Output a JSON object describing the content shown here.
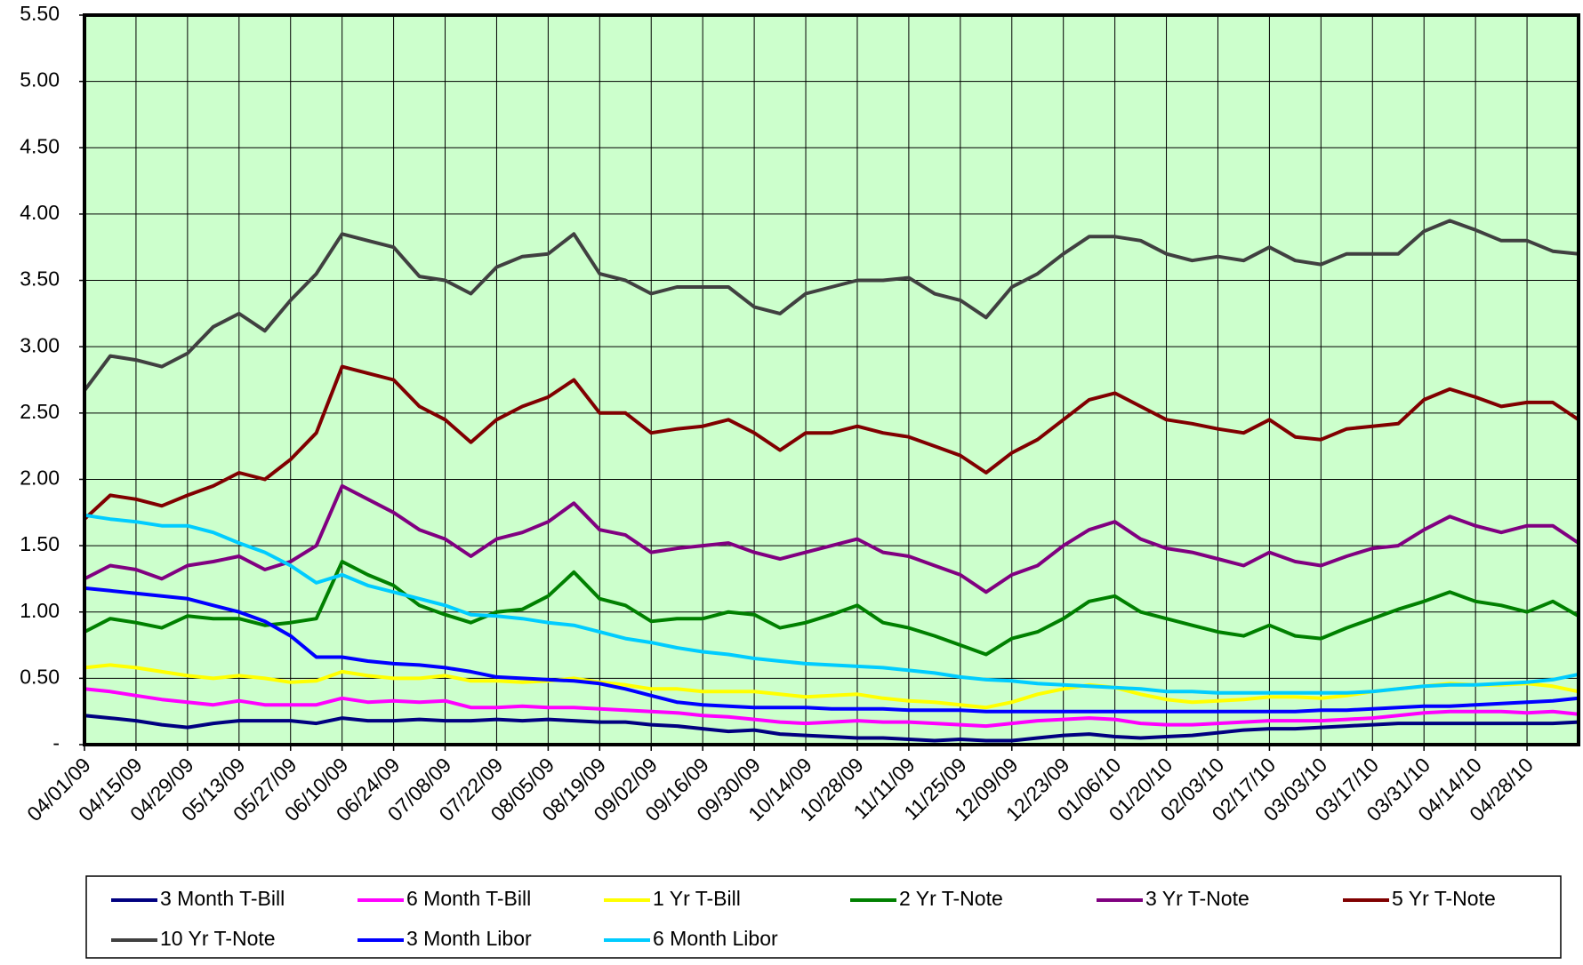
{
  "chart_data": {
    "type": "line",
    "categories": [
      "04/01/09",
      null,
      "04/15/09",
      null,
      "04/29/09",
      null,
      "05/13/09",
      null,
      "05/27/09",
      null,
      "06/10/09",
      null,
      "06/24/09",
      null,
      "07/08/09",
      null,
      "07/22/09",
      null,
      "08/05/09",
      null,
      "08/19/09",
      null,
      "09/02/09",
      null,
      "09/16/09",
      null,
      "09/30/09",
      null,
      "10/14/09",
      null,
      "10/28/09",
      null,
      "11/11/09",
      null,
      "11/25/09",
      null,
      "12/09/09",
      null,
      "12/23/09",
      null,
      "01/06/10",
      null,
      "01/20/10",
      null,
      "02/03/10",
      null,
      "02/17/10",
      null,
      "03/03/10",
      null,
      "03/17/10",
      null,
      "03/31/10",
      null,
      "04/14/10",
      null,
      "04/28/10",
      null,
      null
    ],
    "ylim": [
      0,
      5.5
    ],
    "yticks": [
      {
        "value": 0,
        "label": "-"
      },
      {
        "value": 0.5,
        "label": "0.50"
      },
      {
        "value": 1,
        "label": "1.00"
      },
      {
        "value": 1.5,
        "label": "1.50"
      },
      {
        "value": 2,
        "label": "2.00"
      },
      {
        "value": 2.5,
        "label": "2.50"
      },
      {
        "value": 3,
        "label": "3.00"
      },
      {
        "value": 3.5,
        "label": "3.50"
      },
      {
        "value": 4,
        "label": "4.00"
      },
      {
        "value": 4.5,
        "label": "4.50"
      },
      {
        "value": 5,
        "label": "5.00"
      },
      {
        "value": 5.5,
        "label": "5.50"
      }
    ],
    "grid": true,
    "background": "#ccffcc",
    "legend": "bottom",
    "series": [
      {
        "name": "3 Month T-Bill",
        "color": "#000080",
        "values": [
          0.22,
          0.2,
          0.18,
          0.15,
          0.13,
          0.16,
          0.18,
          0.18,
          0.18,
          0.16,
          0.2,
          0.18,
          0.18,
          0.19,
          0.18,
          0.18,
          0.19,
          0.18,
          0.19,
          0.18,
          0.17,
          0.17,
          0.15,
          0.14,
          0.12,
          0.1,
          0.11,
          0.08,
          0.07,
          0.06,
          0.05,
          0.05,
          0.04,
          0.03,
          0.04,
          0.03,
          0.03,
          0.05,
          0.07,
          0.08,
          0.06,
          0.05,
          0.06,
          0.07,
          0.09,
          0.11,
          0.12,
          0.12,
          0.13,
          0.14,
          0.15,
          0.16,
          0.16,
          0.16,
          0.16,
          0.16,
          0.16,
          0.16,
          0.17
        ]
      },
      {
        "name": "6 Month T-Bill",
        "color": "#ff00ff",
        "values": [
          0.42,
          0.4,
          0.37,
          0.34,
          0.32,
          0.3,
          0.33,
          0.3,
          0.3,
          0.3,
          0.35,
          0.32,
          0.33,
          0.32,
          0.33,
          0.28,
          0.28,
          0.29,
          0.28,
          0.28,
          0.27,
          0.26,
          0.25,
          0.24,
          0.22,
          0.21,
          0.19,
          0.17,
          0.16,
          0.17,
          0.18,
          0.17,
          0.17,
          0.16,
          0.15,
          0.14,
          0.16,
          0.18,
          0.19,
          0.2,
          0.19,
          0.16,
          0.15,
          0.15,
          0.16,
          0.17,
          0.18,
          0.18,
          0.18,
          0.19,
          0.2,
          0.22,
          0.24,
          0.25,
          0.25,
          0.25,
          0.24,
          0.25,
          0.23
        ]
      },
      {
        "name": "1 Yr T-Bill",
        "color": "#ffff00",
        "values": [
          0.58,
          0.6,
          0.58,
          0.55,
          0.52,
          0.5,
          0.52,
          0.5,
          0.47,
          0.48,
          0.55,
          0.52,
          0.5,
          0.5,
          0.52,
          0.48,
          0.48,
          0.47,
          0.48,
          0.5,
          0.47,
          0.45,
          0.42,
          0.42,
          0.4,
          0.4,
          0.4,
          0.38,
          0.36,
          0.37,
          0.38,
          0.35,
          0.33,
          0.32,
          0.3,
          0.28,
          0.32,
          0.38,
          0.42,
          0.45,
          0.43,
          0.38,
          0.34,
          0.32,
          0.33,
          0.34,
          0.36,
          0.36,
          0.35,
          0.37,
          0.4,
          0.42,
          0.44,
          0.46,
          0.45,
          0.45,
          0.46,
          0.44,
          0.4
        ]
      },
      {
        "name": "2 Yr T-Note",
        "color": "#008000",
        "values": [
          0.85,
          0.95,
          0.92,
          0.88,
          0.97,
          0.95,
          0.95,
          0.9,
          0.92,
          0.95,
          1.38,
          1.28,
          1.2,
          1.05,
          0.98,
          0.92,
          1.0,
          1.02,
          1.12,
          1.3,
          1.1,
          1.05,
          0.93,
          0.95,
          0.95,
          1.0,
          0.98,
          0.88,
          0.92,
          0.98,
          1.05,
          0.92,
          0.88,
          0.82,
          0.75,
          0.68,
          0.8,
          0.85,
          0.95,
          1.08,
          1.12,
          1.0,
          0.95,
          0.9,
          0.85,
          0.82,
          0.9,
          0.82,
          0.8,
          0.88,
          0.95,
          1.02,
          1.08,
          1.15,
          1.08,
          1.05,
          1.0,
          1.08,
          0.97
        ]
      },
      {
        "name": "3 Yr T-Note",
        "color": "#800080",
        "values": [
          1.25,
          1.35,
          1.32,
          1.25,
          1.35,
          1.38,
          1.42,
          1.32,
          1.38,
          1.5,
          1.95,
          1.85,
          1.75,
          1.62,
          1.55,
          1.42,
          1.55,
          1.6,
          1.68,
          1.82,
          1.62,
          1.58,
          1.45,
          1.48,
          1.5,
          1.52,
          1.45,
          1.4,
          1.45,
          1.5,
          1.55,
          1.45,
          1.42,
          1.35,
          1.28,
          1.15,
          1.28,
          1.35,
          1.5,
          1.62,
          1.68,
          1.55,
          1.48,
          1.45,
          1.4,
          1.35,
          1.45,
          1.38,
          1.35,
          1.42,
          1.48,
          1.5,
          1.62,
          1.72,
          1.65,
          1.6,
          1.65,
          1.65,
          1.52
        ]
      },
      {
        "name": "5 Yr T-Note",
        "color": "#800000",
        "values": [
          1.7,
          1.88,
          1.85,
          1.8,
          1.88,
          1.95,
          2.05,
          2.0,
          2.15,
          2.35,
          2.85,
          2.8,
          2.75,
          2.55,
          2.45,
          2.28,
          2.45,
          2.55,
          2.62,
          2.75,
          2.5,
          2.5,
          2.35,
          2.38,
          2.4,
          2.45,
          2.35,
          2.22,
          2.35,
          2.35,
          2.4,
          2.35,
          2.32,
          2.25,
          2.18,
          2.05,
          2.2,
          2.3,
          2.45,
          2.6,
          2.65,
          2.55,
          2.45,
          2.42,
          2.38,
          2.35,
          2.45,
          2.32,
          2.3,
          2.38,
          2.4,
          2.42,
          2.6,
          2.68,
          2.62,
          2.55,
          2.58,
          2.58,
          2.45
        ]
      },
      {
        "name": "10 Yr T-Note",
        "color": "#404040",
        "values": [
          2.67,
          2.93,
          2.9,
          2.85,
          2.95,
          3.15,
          3.25,
          3.12,
          3.35,
          3.55,
          3.85,
          3.8,
          3.75,
          3.53,
          3.5,
          3.4,
          3.6,
          3.68,
          3.7,
          3.85,
          3.55,
          3.5,
          3.4,
          3.45,
          3.45,
          3.45,
          3.3,
          3.25,
          3.4,
          3.45,
          3.5,
          3.5,
          3.52,
          3.4,
          3.35,
          3.22,
          3.45,
          3.55,
          3.7,
          3.83,
          3.83,
          3.8,
          3.7,
          3.65,
          3.68,
          3.65,
          3.75,
          3.65,
          3.62,
          3.7,
          3.7,
          3.7,
          3.87,
          3.95,
          3.88,
          3.8,
          3.8,
          3.72,
          3.7
        ]
      },
      {
        "name": "3 Month Libor",
        "color": "#0000ff",
        "values": [
          1.18,
          1.16,
          1.14,
          1.12,
          1.1,
          1.05,
          1.0,
          0.93,
          0.82,
          0.66,
          0.66,
          0.63,
          0.61,
          0.6,
          0.58,
          0.55,
          0.51,
          0.5,
          0.49,
          0.48,
          0.46,
          0.42,
          0.37,
          0.32,
          0.3,
          0.29,
          0.28,
          0.28,
          0.28,
          0.27,
          0.27,
          0.27,
          0.26,
          0.26,
          0.26,
          0.25,
          0.25,
          0.25,
          0.25,
          0.25,
          0.25,
          0.25,
          0.25,
          0.25,
          0.25,
          0.25,
          0.25,
          0.25,
          0.26,
          0.26,
          0.27,
          0.28,
          0.29,
          0.29,
          0.3,
          0.31,
          0.32,
          0.33,
          0.35
        ]
      },
      {
        "name": "6 Month Libor",
        "color": "#00ccff",
        "values": [
          1.73,
          1.7,
          1.68,
          1.65,
          1.65,
          1.6,
          1.52,
          1.45,
          1.35,
          1.22,
          1.28,
          1.2,
          1.15,
          1.1,
          1.05,
          0.98,
          0.97,
          0.95,
          0.92,
          0.9,
          0.85,
          0.8,
          0.77,
          0.73,
          0.7,
          0.68,
          0.65,
          0.63,
          0.61,
          0.6,
          0.59,
          0.58,
          0.56,
          0.54,
          0.51,
          0.49,
          0.48,
          0.46,
          0.45,
          0.44,
          0.43,
          0.42,
          0.4,
          0.4,
          0.39,
          0.39,
          0.39,
          0.39,
          0.39,
          0.39,
          0.4,
          0.42,
          0.44,
          0.45,
          0.45,
          0.46,
          0.47,
          0.49,
          0.53
        ]
      }
    ]
  }
}
